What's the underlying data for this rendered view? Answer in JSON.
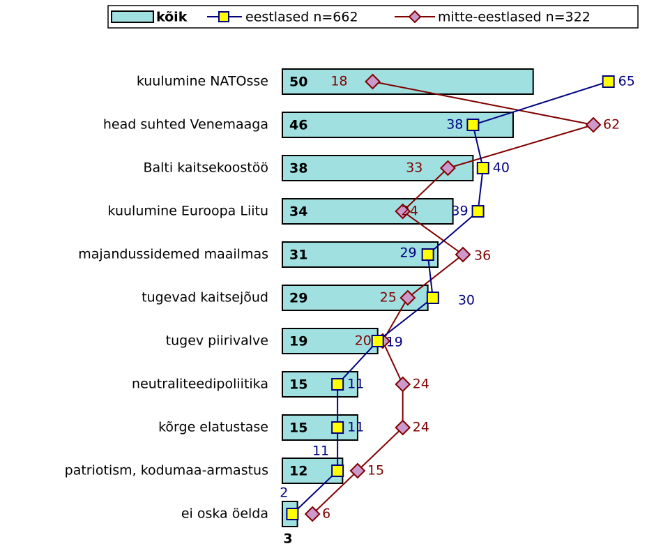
{
  "chart_data": {
    "type": "bar",
    "categories": [
      "kuulumine NATOsse",
      "head suhted Venemaaga",
      "Balti kaitsekoostöö",
      "kuulumine Euroopa Liitu",
      "majandussidemed maailmas",
      "tugevad kaitsejõud",
      "tugev piirivalve",
      "neutraliteedipoliitika",
      "kõrge elatustase",
      "patriotism, kodumaa-armastus",
      "ei oska öelda"
    ],
    "series": [
      {
        "name": "kõik",
        "type": "bar",
        "color": "#a0e0e0",
        "values": [
          50,
          46,
          38,
          34,
          31,
          29,
          19,
          15,
          15,
          12,
          3
        ]
      },
      {
        "name": "eestlased n=662",
        "type": "line",
        "color": "#000080",
        "marker_color": "#ffff00",
        "values": [
          65,
          38,
          40,
          39,
          29,
          30,
          19,
          11,
          11,
          11,
          2
        ]
      },
      {
        "name": "mitte-eestlased n=322",
        "type": "line",
        "color": "#800000",
        "marker_color": "#cc99cc",
        "values": [
          18,
          62,
          33,
          24,
          36,
          25,
          20,
          24,
          24,
          15,
          6
        ]
      }
    ],
    "xlim": [
      0,
      72
    ],
    "legend": "top"
  }
}
